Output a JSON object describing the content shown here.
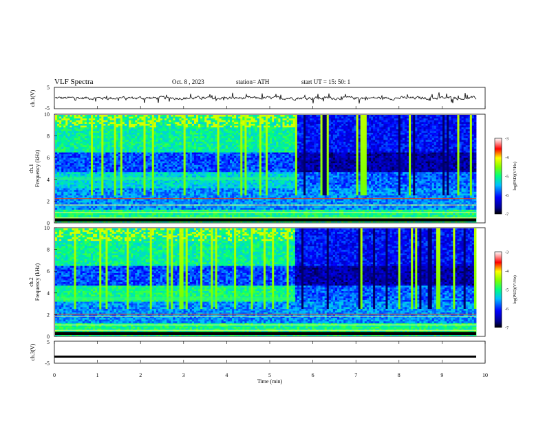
{
  "header": {
    "title": "VLF  Spectra",
    "date": "Oct. 8  , 2023",
    "station": "station= ATH",
    "start": "start  UT  =   15: 50: 1"
  },
  "chart_data": [
    {
      "type": "line",
      "panel": "ch1-waveform",
      "ylabel": "ch.1(V)",
      "yticks": [
        "5",
        "-5"
      ],
      "ylim": [
        -5,
        5
      ],
      "xlim": [
        0,
        10
      ],
      "description_values": "noisy waveform centered near 0 V with amplitude roughly +/-1 V over 0–9.8 min"
    },
    {
      "type": "heatmap",
      "panel": "ch1-spectrogram",
      "ylabel": "ch.1\nFrequency  (kHz)",
      "ylabel_channel": "ch.1",
      "ylabel_freq": "Frequency  (kHz)",
      "yticks": [
        "0",
        "2",
        "4",
        "6",
        "8",
        "10"
      ],
      "ylim": [
        0,
        10
      ],
      "xlim": [
        0,
        10
      ],
      "colorbar": {
        "label": "log(PSD)(V²/Hz)",
        "ticks": [
          "-3",
          "-4",
          "-5",
          "-6",
          "-7"
        ],
        "range": [
          -7,
          -3
        ]
      },
      "features": {
        "transition_time_min": 5.6,
        "band_khz": [
          4.2,
          3.9
        ],
        "line_khz": [
          2.2,
          1.6,
          0.9,
          0.4
        ]
      }
    },
    {
      "type": "heatmap",
      "panel": "ch2-spectrogram",
      "ylabel_channel": "ch.2",
      "ylabel_freq": "Frequency  (kHz)",
      "yticks": [
        "0",
        "2",
        "4",
        "6",
        "8",
        "10"
      ],
      "ylim": [
        0,
        10
      ],
      "xlim": [
        0,
        10
      ],
      "colorbar": {
        "label": "log(PSD)(V²/Hz)",
        "ticks": [
          "-3",
          "-4",
          "-5",
          "-6",
          "-7"
        ],
        "range": [
          -7,
          -3
        ]
      },
      "features": {
        "transition_time_min": 5.6,
        "band_khz": [
          3.6,
          3.3
        ],
        "line_khz": [
          2.0,
          1.8,
          1.0,
          0.5
        ]
      }
    },
    {
      "type": "line",
      "panel": "ch3-waveform",
      "ylabel": "ch.3(V)",
      "yticks": [
        "5",
        "-5"
      ],
      "ylim": [
        -5,
        5
      ],
      "xlim": [
        0,
        10
      ],
      "constant_value": -2.0
    }
  ],
  "xaxis": {
    "label": "Time  (min)",
    "ticks": [
      "0",
      "1",
      "2",
      "3",
      "4",
      "5",
      "6",
      "7",
      "8",
      "9",
      "10"
    ]
  }
}
